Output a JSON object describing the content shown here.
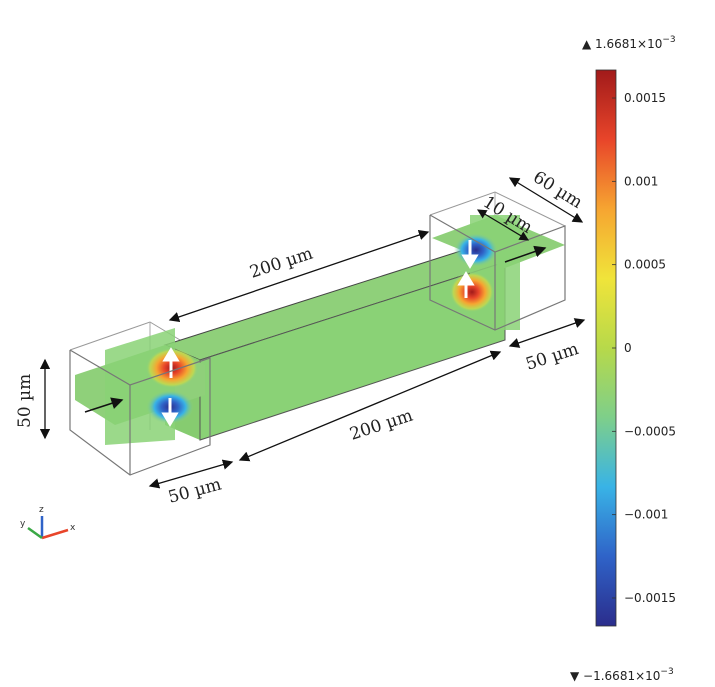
{
  "color_scale": {
    "max_label": "1.6681×10",
    "max_exponent": "−3",
    "min_label": "−1.6681×10",
    "min_exponent": "−3",
    "max_value": 0.0016681,
    "min_value": -0.0016681,
    "ticks": [
      {
        "value": 0.0015,
        "label": "0.0015"
      },
      {
        "value": 0.001,
        "label": "0.001"
      },
      {
        "value": 0.0005,
        "label": "0.0005"
      },
      {
        "value": 0,
        "label": "0"
      },
      {
        "value": -0.0005,
        "label": "−0.0005"
      },
      {
        "value": -0.001,
        "label": "−0.001"
      },
      {
        "value": -0.0015,
        "label": "−0.0015"
      }
    ],
    "colors": [
      "#2b2d8c",
      "#2f63c8",
      "#39b3e6",
      "#7ecf8a",
      "#b7d94a",
      "#f0e43a",
      "#f6a531",
      "#e8452a",
      "#a11a1a"
    ]
  },
  "dimensions": {
    "top_length": "200 µm",
    "bottom_length": "200 µm",
    "left_height": "50 µm",
    "left_width": "50 µm",
    "right_width": "50 µm",
    "right_depth": "60 µm",
    "right_inner": "10 µm"
  },
  "axes_triad": {
    "x": "x",
    "y": "y",
    "z": "z"
  }
}
